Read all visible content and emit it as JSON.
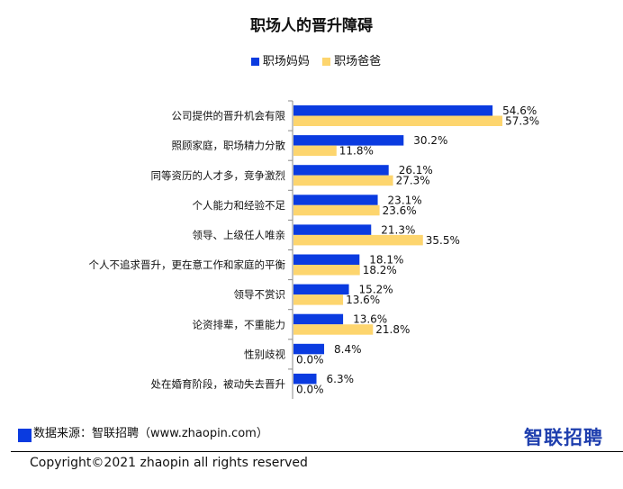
{
  "chart_data": {
    "type": "bar",
    "orientation": "horizontal",
    "title": "职场人的晋升障碍",
    "categories": [
      "公司提供的晋升机会有限",
      "照顾家庭，职场精力分散",
      "同等资历的人才多，竞争激烈",
      "个人能力和经验不足",
      "领导、上级任人唯亲",
      "个人不追求晋升，更在意工作和家庭的平衡",
      "领导不赏识",
      "论资排辈，不重能力",
      "性别歧视",
      "处在婚育阶段，被动失去晋升"
    ],
    "series": [
      {
        "name": "职场妈妈",
        "color": "#0a3be0",
        "values": [
          54.6,
          30.2,
          26.1,
          23.1,
          21.3,
          18.1,
          15.2,
          13.6,
          8.4,
          6.3
        ]
      },
      {
        "name": "职场爸爸",
        "color": "#fdd56e",
        "values": [
          57.3,
          11.8,
          27.3,
          23.6,
          35.5,
          18.2,
          13.6,
          21.8,
          0.0,
          0.0
        ]
      }
    ],
    "unit": "%",
    "legend_position": "top",
    "grid": false
  },
  "source": "数据来源：智联招聘（www.zhaopin.com）",
  "logo": "智联招聘",
  "copyright": "Copyright©2021 zhaopin all rights reserved"
}
